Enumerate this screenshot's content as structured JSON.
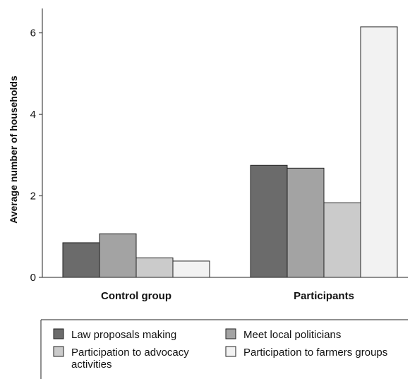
{
  "chart_data": {
    "type": "bar",
    "ylabel": "Average number of households",
    "xlabel": "",
    "ylim": [
      0,
      6.6
    ],
    "yticks": [
      0,
      2,
      4,
      6
    ],
    "grid": false,
    "legend_position": "bottom",
    "categories": [
      "Control group",
      "Participants"
    ],
    "series": [
      {
        "name": "Law proposals making",
        "color": "#6b6b6b",
        "values": [
          0.85,
          2.75
        ]
      },
      {
        "name": "Meet local politicians",
        "color": "#a3a3a3",
        "values": [
          1.07,
          2.68
        ]
      },
      {
        "name": "Participation to advocacy activities",
        "color": "#cbcbcb",
        "values": [
          0.48,
          1.83
        ]
      },
      {
        "name": "Participation to farmers groups",
        "color": "#f2f2f2",
        "values": [
          0.4,
          6.15
        ]
      }
    ]
  }
}
